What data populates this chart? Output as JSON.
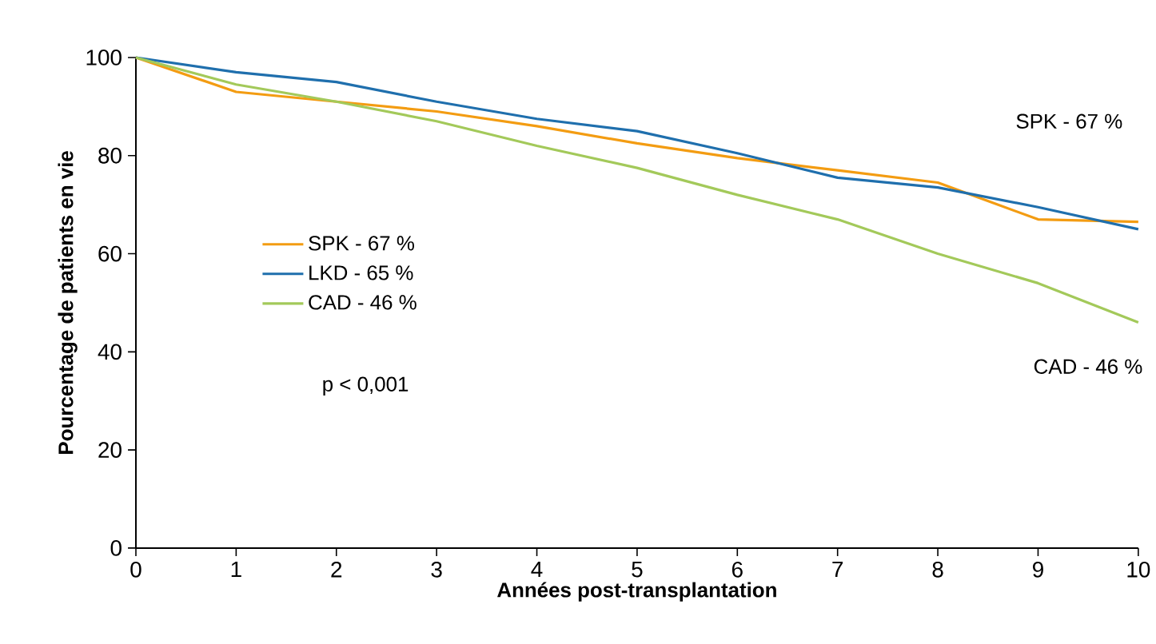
{
  "chart_data": {
    "type": "line",
    "xlabel": "Années post-transplantation",
    "ylabel": "Pourcentage de patients en vie",
    "x": [
      0,
      1,
      2,
      3,
      4,
      5,
      6,
      7,
      8,
      9,
      10
    ],
    "series": [
      {
        "name": "SPK - 67 %",
        "color": "#f39c12",
        "values": [
          100,
          93,
          91,
          89,
          86,
          82.5,
          79.5,
          77,
          74.5,
          67,
          66.5
        ]
      },
      {
        "name": "LKD - 65 %",
        "color": "#1f6fad",
        "values": [
          100,
          97,
          95,
          91,
          87.5,
          85,
          80.5,
          75.5,
          73.5,
          69.5,
          65
        ]
      },
      {
        "name": "CAD - 46 %",
        "color": "#a3c95a",
        "values": [
          100,
          94.5,
          91,
          87,
          82,
          77.5,
          72,
          67,
          60,
          54,
          46
        ]
      }
    ],
    "annotations": [
      "SPK - 67 %",
      "CAD - 46 %",
      "p < 0,001"
    ],
    "xlim": [
      0,
      10
    ],
    "ylim": [
      0,
      100
    ],
    "xticks": [
      0,
      1,
      2,
      3,
      4,
      5,
      6,
      7,
      8,
      9,
      10
    ],
    "yticks": [
      0,
      20,
      40,
      60,
      80,
      100
    ],
    "grid": false,
    "legend": "left",
    "marker": "none",
    "line_style": "solid"
  }
}
